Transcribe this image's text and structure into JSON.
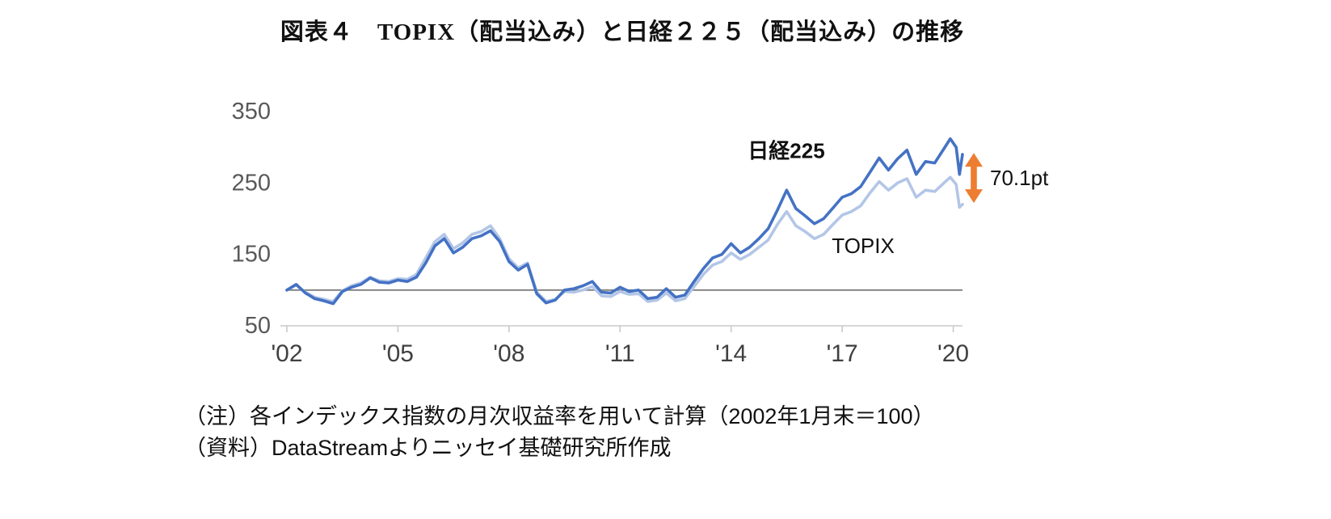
{
  "title": "図表４　TOPIX（配当込み）と日経２２５（配当込み）の推移",
  "notes": [
    "（注）各インデックス指数の月次収益率を用いて計算（2002年1月末＝100）",
    "（資料）DataStreamよりニッセイ基礎研究所作成"
  ],
  "colors": {
    "nikkei": "#4472c4",
    "topix": "#b3c6e7",
    "arrow": "#ed7d31",
    "axis": "#c9c9c9",
    "baseline": "#7f7f7f",
    "ytick_label": "#595959",
    "xtick_label": "#404040",
    "annotation_text": "#111111"
  },
  "chart_data": {
    "type": "line",
    "title": "図表４　TOPIX（配当込み）と日経２２５（配当込み）の推移",
    "xlabel": "",
    "ylabel": "",
    "grid": false,
    "xlim": [
      2002,
      2020.25
    ],
    "ylim": [
      50,
      350
    ],
    "baseline": {
      "value": 100
    },
    "yticks": [
      {
        "value": 350,
        "label": "350"
      },
      {
        "value": 250,
        "label": "250"
      },
      {
        "value": 150,
        "label": "150"
      },
      {
        "value": 50,
        "label": "50"
      }
    ],
    "xticks": [
      {
        "value": 2002,
        "label": "'02"
      },
      {
        "value": 2005,
        "label": "'05"
      },
      {
        "value": 2008,
        "label": "'08"
      },
      {
        "value": 2011,
        "label": "'11"
      },
      {
        "value": 2014,
        "label": "'14"
      },
      {
        "value": 2017,
        "label": "'17"
      },
      {
        "value": 2020,
        "label": "'20"
      }
    ],
    "x": [
      2002.0,
      2002.25,
      2002.5,
      2002.75,
      2003.0,
      2003.25,
      2003.5,
      2003.75,
      2004.0,
      2004.25,
      2004.5,
      2004.75,
      2005.0,
      2005.25,
      2005.5,
      2005.75,
      2006.0,
      2006.25,
      2006.5,
      2006.75,
      2007.0,
      2007.25,
      2007.5,
      2007.75,
      2008.0,
      2008.25,
      2008.5,
      2008.75,
      2009.0,
      2009.25,
      2009.5,
      2009.75,
      2010.0,
      2010.25,
      2010.5,
      2010.75,
      2011.0,
      2011.25,
      2011.5,
      2011.75,
      2012.0,
      2012.25,
      2012.5,
      2012.75,
      2013.0,
      2013.25,
      2013.5,
      2013.75,
      2014.0,
      2014.25,
      2014.5,
      2014.75,
      2015.0,
      2015.25,
      2015.5,
      2015.75,
      2016.0,
      2016.25,
      2016.5,
      2016.75,
      2017.0,
      2017.25,
      2017.5,
      2017.75,
      2018.0,
      2018.25,
      2018.5,
      2018.75,
      2019.0,
      2019.25,
      2019.5,
      2019.75,
      2019.92,
      2020.08,
      2020.17,
      2020.25
    ],
    "series": [
      {
        "name": "日経225",
        "color": "#4472c4",
        "values": [
          100,
          108,
          96,
          88,
          85,
          81,
          98,
          104,
          108,
          117,
          111,
          110,
          114,
          112,
          118,
          138,
          162,
          172,
          152,
          160,
          172,
          176,
          183,
          168,
          140,
          128,
          136,
          95,
          82,
          86,
          100,
          102,
          106,
          112,
          97,
          96,
          104,
          98,
          100,
          88,
          90,
          102,
          90,
          93,
          112,
          130,
          145,
          150,
          165,
          152,
          160,
          172,
          186,
          212,
          240,
          214,
          204,
          193,
          200,
          215,
          230,
          235,
          245,
          265,
          285,
          268,
          284,
          296,
          262,
          280,
          278,
          298,
          312,
          300,
          262,
          290
        ]
      },
      {
        "name": "TOPIX",
        "color": "#b3c6e7",
        "values": [
          100,
          107,
          97,
          90,
          87,
          84,
          99,
          106,
          110,
          118,
          113,
          112,
          116,
          115,
          122,
          145,
          168,
          178,
          158,
          166,
          178,
          182,
          190,
          172,
          144,
          131,
          138,
          97,
          84,
          87,
          98,
          97,
          100,
          105,
          92,
          91,
          98,
          94,
          95,
          84,
          86,
          96,
          85,
          88,
          105,
          122,
          135,
          140,
          152,
          143,
          150,
          160,
          170,
          192,
          210,
          190,
          182,
          172,
          178,
          192,
          205,
          210,
          218,
          236,
          252,
          240,
          250,
          256,
          230,
          240,
          238,
          250,
          258,
          248,
          216,
          220
        ]
      }
    ],
    "annotations": {
      "series_label_nikkei": "日経225",
      "series_label_topix": "TOPIX",
      "gap_arrow": {
        "top_value": 292,
        "bottom_value": 222,
        "label": "70.1pt",
        "color": "#ed7d31"
      }
    }
  }
}
